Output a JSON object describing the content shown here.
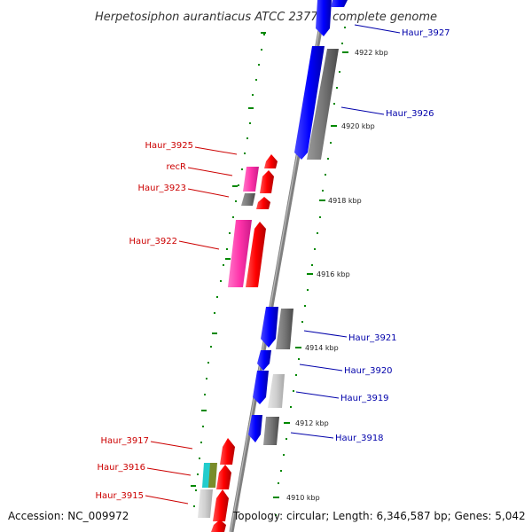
{
  "title": "Herpetosiphon aurantiacus ATCC 23779, complete genome",
  "footer": {
    "accession": "Accession: NC_009972",
    "topology": "Topology: circular; Length: 6,346,587 bp; Genes: 5,042"
  },
  "colors": {
    "forward_red": "#ff0000",
    "reverse_blue": "#0000ff",
    "pseudo_gray": "#707070",
    "pink": "#ff33aa",
    "label_red": "#cc0000",
    "label_blue": "#0000aa",
    "tick_green": "#008800"
  },
  "ticks": [
    "4922 kbp",
    "4920 kbp",
    "4918 kbp",
    "4916 kbp",
    "4914 kbp",
    "4912 kbp",
    "4910 kbp"
  ],
  "labels_left": [
    "Haur_3925",
    "recR",
    "Haur_3923",
    "Haur_3922",
    "Haur_3917",
    "Haur_3916",
    "Haur_3915"
  ],
  "labels_right": [
    "Haur_3927",
    "Haur_3926",
    "Haur_3921",
    "Haur_3920",
    "Haur_3919",
    "Haur_3918"
  ]
}
